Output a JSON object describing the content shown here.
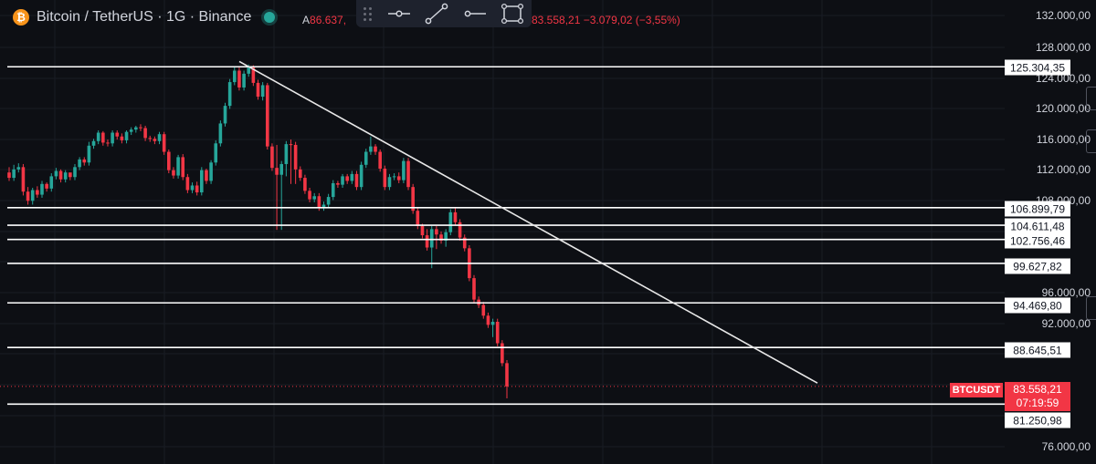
{
  "header": {
    "logo_glyph": "₿",
    "title": "Bitcoin / TetherUS · 1G · Binance",
    "ohlc_prefix": "A",
    "ohlc_open": "86.637,",
    "ohlc_tail": "83.558,21  −3.079,02 (−3,55%)"
  },
  "toolbar": {
    "tools": [
      "drag-handle",
      "horizontal-ray-tool",
      "trend-line-tool",
      "ray-tool",
      "rectangle-tool"
    ]
  },
  "price_axis": {
    "ticks": [
      "132.000,00",
      "128.000,00",
      "124.000,00",
      "120.000,00",
      "116.000,00",
      "112.000,00",
      "108.000,00",
      "96.000,00",
      "92.000,00",
      "76.000,00"
    ]
  },
  "levels": [
    "125.304,35",
    "106.899,79",
    "104.611,48",
    "102.756,46",
    "99.627,82",
    "94.469,80",
    "88.645,51",
    "81.250,98"
  ],
  "current": {
    "symbol": "BTCUSDT",
    "price": "83.558,21",
    "countdown": "07:19:59"
  },
  "colors": {
    "background": "#0d0f14",
    "up": "#26a69a",
    "down": "#f23645",
    "level_line": "#ffffff"
  },
  "chart_data": {
    "type": "candlestick",
    "title": "Bitcoin / TetherUS · 1G · Binance",
    "price_range": [
      74000,
      133000
    ],
    "trend_line": {
      "from": 126000,
      "to": 84000
    },
    "horizontal_levels": [
      125304.35,
      106899.79,
      104611.48,
      102756.46,
      99627.82,
      94469.8,
      88645.51,
      81250.98
    ],
    "current_price": 83558.21,
    "closes": [
      110800,
      111900,
      112200,
      109000,
      107800,
      109200,
      108600,
      110000,
      109400,
      111000,
      111700,
      110600,
      111500,
      110900,
      112200,
      113200,
      112800,
      115000,
      115600,
      116700,
      115400,
      115300,
      116700,
      116200,
      115700,
      116800,
      117100,
      117400,
      117300,
      116000,
      115900,
      115600,
      116500,
      114200,
      111800,
      111100,
      113500,
      110900,
      109200,
      109800,
      108900,
      111800,
      110400,
      112800,
      115300,
      117900,
      120200,
      123300,
      124800,
      122600,
      124400,
      125200,
      123200,
      121400,
      122900,
      114900,
      112100,
      111200,
      112600,
      115200,
      115100,
      111900,
      110800,
      109100,
      108000,
      108400,
      106900,
      107300,
      108300,
      110100,
      109900,
      111000,
      110400,
      111300,
      109600,
      112500,
      114200,
      114900,
      114200,
      112000,
      109600,
      110900,
      111000,
      110500,
      113000,
      109600,
      106500,
      104500,
      103300,
      101700,
      104100,
      103400,
      102600,
      103700,
      106300,
      105000,
      103000,
      101600,
      97700,
      94900,
      94200,
      92800,
      91600,
      92000,
      89200,
      86600,
      83558
    ],
    "opens": [
      111500,
      110800,
      111900,
      112200,
      109000,
      107800,
      109200,
      108600,
      110000,
      109400,
      111000,
      111700,
      110600,
      111500,
      110900,
      112200,
      113200,
      112800,
      115000,
      115600,
      116700,
      115400,
      115300,
      116700,
      116200,
      115700,
      116800,
      117100,
      117400,
      117300,
      116000,
      115900,
      115600,
      116500,
      114200,
      111800,
      111100,
      113500,
      110900,
      109200,
      109800,
      108900,
      111800,
      110400,
      112800,
      115300,
      117900,
      120200,
      123300,
      124800,
      122600,
      124400,
      125200,
      123200,
      121400,
      122900,
      114900,
      112100,
      111200,
      112600,
      115200,
      115100,
      111900,
      110800,
      109100,
      108000,
      108400,
      106900,
      107300,
      108300,
      110100,
      109900,
      111000,
      110400,
      111300,
      109600,
      112500,
      114200,
      114900,
      114200,
      112000,
      109600,
      110900,
      111000,
      110500,
      113000,
      109600,
      106500,
      104500,
      103300,
      101700,
      104100,
      103400,
      102600,
      103700,
      106300,
      105000,
      103000,
      101600,
      97700,
      94900,
      94200,
      92800,
      91600,
      92000,
      89200,
      86600
    ],
    "highs": [
      112200,
      112500,
      112700,
      112600,
      109600,
      109500,
      109700,
      110400,
      110200,
      111400,
      112100,
      111900,
      111800,
      111400,
      112600,
      113500,
      113500,
      115500,
      115900,
      117000,
      116900,
      115800,
      117000,
      117000,
      116600,
      117000,
      117400,
      117600,
      117800,
      117600,
      116300,
      116200,
      116800,
      116800,
      114500,
      112200,
      113800,
      113900,
      111300,
      110200,
      110300,
      112200,
      112000,
      113100,
      115700,
      118300,
      120600,
      123700,
      125300,
      125200,
      124800,
      125600,
      125500,
      123600,
      123300,
      123200,
      115300,
      115100,
      113000,
      115600,
      115800,
      115500,
      112300,
      111200,
      109500,
      108800,
      108800,
      107700,
      108700,
      110500,
      110400,
      111300,
      111300,
      111700,
      111700,
      112900,
      114600,
      116200,
      115200,
      114500,
      112400,
      111300,
      111400,
      111500,
      113400,
      113400,
      110000,
      106900,
      104800,
      104100,
      104500,
      104500,
      103800,
      104100,
      106700,
      107000,
      105400,
      103400,
      102000,
      98100,
      95300,
      94600,
      93200,
      92400,
      92400,
      89600,
      87000
    ],
    "lows": [
      110400,
      110400,
      111500,
      108500,
      107300,
      107300,
      108200,
      108200,
      109000,
      109000,
      110600,
      110200,
      110200,
      110500,
      110500,
      111800,
      112400,
      112400,
      114600,
      115200,
      115000,
      114900,
      114900,
      115800,
      115300,
      115300,
      116400,
      116700,
      116900,
      115600,
      115500,
      115200,
      115200,
      113800,
      111400,
      110700,
      110700,
      110500,
      108800,
      108800,
      108500,
      108500,
      110000,
      110000,
      112400,
      114900,
      117500,
      119800,
      122900,
      122200,
      122200,
      124000,
      122800,
      121000,
      120900,
      114500,
      111700,
      104000,
      104000,
      111000,
      110000,
      110000,
      110400,
      108700,
      107600,
      107600,
      106500,
      106500,
      106900,
      107900,
      109500,
      109500,
      110000,
      110000,
      109200,
      109200,
      112100,
      113800,
      113800,
      111600,
      109200,
      109200,
      110500,
      110100,
      110100,
      109200,
      106100,
      104100,
      102900,
      101300,
      99000,
      101500,
      102200,
      101800,
      103300,
      104600,
      102600,
      101200,
      97300,
      94500,
      93800,
      92400,
      91200,
      90000,
      88800,
      86200,
      82000
    ]
  }
}
